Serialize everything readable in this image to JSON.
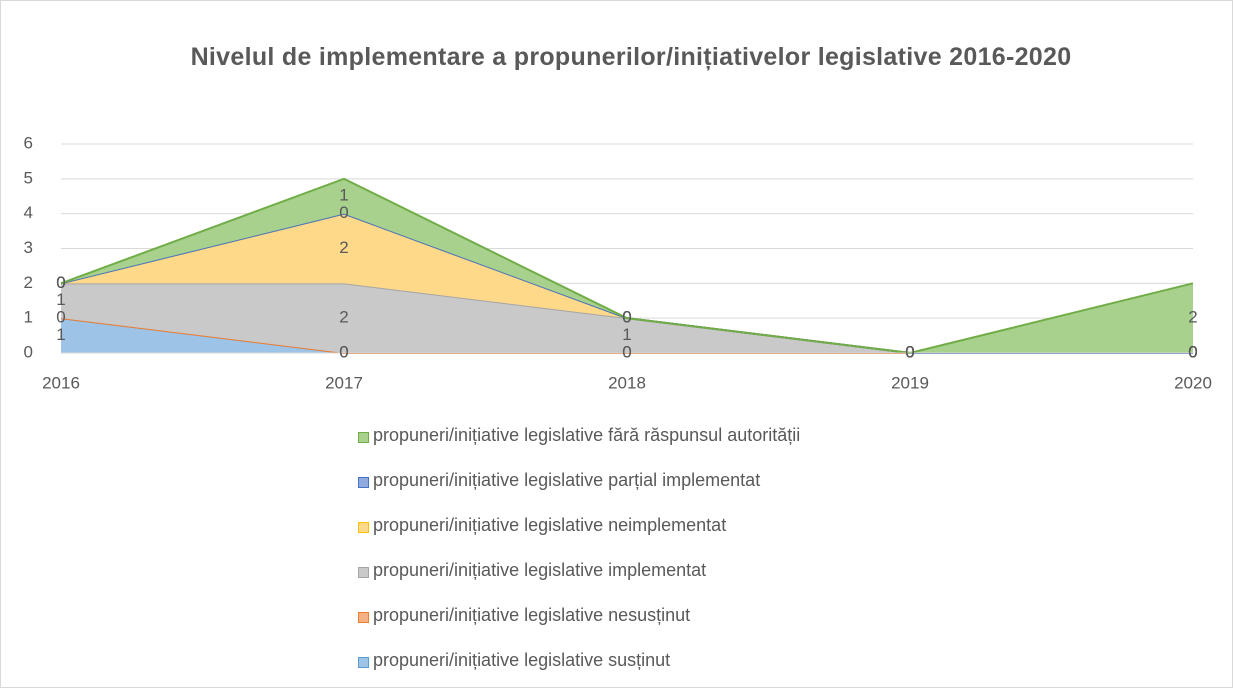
{
  "chart_data": {
    "type": "stacked_area",
    "title": "Nivelul de implementare a propunerilor/inițiativelor legislative 2016-2020",
    "categories": [
      "2016",
      "2017",
      "2018",
      "2019",
      "2020"
    ],
    "ylim": [
      0,
      6
    ],
    "yticks": [
      0,
      1,
      2,
      3,
      4,
      5,
      6
    ],
    "grid": true,
    "legend": "bottom",
    "series": [
      {
        "name": "propuneri/inițiative legislative fără răspunsul autorității",
        "color": "#70ad47",
        "fill": "#a9d18e",
        "values": [
          0,
          1,
          0,
          0,
          2
        ]
      },
      {
        "name": "propuneri/inițiative legislative parțial implementat",
        "color": "#4472c4",
        "fill": "#8faadc",
        "values": [
          0,
          0,
          0,
          0,
          0
        ]
      },
      {
        "name": "propuneri/inițiative legislative neimplementat",
        "color": "#ffc000",
        "fill": "#ffd98a",
        "values": [
          0,
          2,
          0,
          0,
          0
        ]
      },
      {
        "name": "propuneri/inițiative legislative implementat",
        "color": "#a5a5a5",
        "fill": "#c9c9c9",
        "values": [
          1,
          2,
          1,
          0,
          0
        ]
      },
      {
        "name": "propuneri/inițiative legislative nesusținut",
        "color": "#ed7d31",
        "fill": "#f4b183",
        "values": [
          0,
          0,
          0,
          0,
          0
        ]
      },
      {
        "name": "propuneri/inițiative legislative susținut",
        "color": "#5b9bd5",
        "fill": "#9dc3e6",
        "values": [
          1,
          0,
          0,
          0,
          0
        ]
      }
    ]
  }
}
